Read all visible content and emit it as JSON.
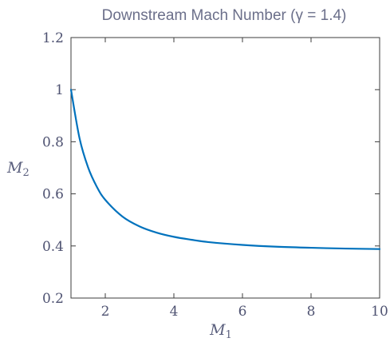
{
  "chart_data": {
    "type": "line",
    "title": "Downstream Mach Number (γ = 1.4)",
    "xlabel": "M",
    "xlabel_sub": "1",
    "ylabel": "M",
    "ylabel_sub": "2",
    "xlim": [
      1,
      10
    ],
    "ylim": [
      0.2,
      1.2
    ],
    "xticks": [
      2,
      4,
      6,
      8,
      10
    ],
    "xtick_labels": [
      "2",
      "4",
      "6",
      "8",
      "10"
    ],
    "yticks": [
      0.2,
      0.4,
      0.6,
      0.8,
      1.0,
      1.2
    ],
    "ytick_labels": [
      "0.2",
      "0.4",
      "0.6",
      "0.8",
      "1",
      "1.2"
    ],
    "grid": false,
    "line_color": "#0072bd",
    "series": [
      {
        "x": [
          1.0,
          1.25,
          1.5,
          1.75,
          2.0,
          2.5,
          3.0,
          3.5,
          4.0,
          4.5,
          5.0,
          6.0,
          7.0,
          8.0,
          9.0,
          10.0
        ],
        "values": [
          1.0,
          0.813,
          0.701,
          0.628,
          0.577,
          0.513,
          0.475,
          0.451,
          0.435,
          0.424,
          0.415,
          0.404,
          0.397,
          0.393,
          0.39,
          0.388
        ]
      }
    ]
  }
}
